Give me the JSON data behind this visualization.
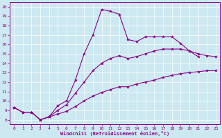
{
  "xlabel": "Windchill (Refroidissement éolien,°C)",
  "background_color": "#cce8f0",
  "line_color": "#880088",
  "xlim": [
    -0.5,
    23.5
  ],
  "ylim": [
    7.5,
    20.5
  ],
  "xticks": [
    0,
    1,
    2,
    3,
    4,
    5,
    6,
    7,
    8,
    9,
    10,
    11,
    12,
    13,
    14,
    15,
    16,
    17,
    18,
    19,
    20,
    21,
    22,
    23
  ],
  "yticks": [
    8,
    9,
    10,
    11,
    12,
    13,
    14,
    15,
    16,
    17,
    18,
    19,
    20
  ],
  "curve1_x": [
    0,
    1,
    2,
    3,
    4,
    5,
    6,
    7,
    8,
    9,
    10,
    11,
    12,
    13,
    14,
    15,
    16,
    17,
    18,
    19,
    20,
    21
  ],
  "curve1_y": [
    9.3,
    8.8,
    8.8,
    8.0,
    8.3,
    9.5,
    10.0,
    12.2,
    15.0,
    17.0,
    19.7,
    19.5,
    19.2,
    16.5,
    16.3,
    16.8,
    16.8,
    16.8,
    16.8,
    16.1,
    15.3,
    14.7
  ],
  "curve2_x": [
    0,
    1,
    2,
    3,
    4,
    5,
    6,
    7,
    8,
    9,
    10,
    11,
    12,
    13,
    14,
    15,
    16,
    17,
    18,
    19,
    20,
    21,
    22,
    23
  ],
  "curve2_y": [
    9.3,
    8.8,
    8.8,
    8.0,
    8.3,
    9.0,
    9.6,
    10.8,
    12.0,
    13.2,
    14.0,
    14.5,
    14.8,
    14.5,
    14.7,
    15.0,
    15.3,
    15.5,
    15.5,
    15.5,
    15.3,
    15.0,
    14.8,
    14.7
  ],
  "curve3_x": [
    0,
    1,
    2,
    3,
    4,
    5,
    6,
    7,
    8,
    9,
    10,
    11,
    12,
    13,
    14,
    15,
    16,
    17,
    18,
    19,
    20,
    21,
    22,
    23
  ],
  "curve3_y": [
    9.3,
    8.8,
    8.8,
    8.0,
    8.3,
    8.6,
    8.9,
    9.4,
    10.0,
    10.5,
    10.9,
    11.2,
    11.5,
    11.5,
    11.8,
    12.0,
    12.2,
    12.5,
    12.7,
    12.9,
    13.0,
    13.1,
    13.2,
    13.2
  ]
}
